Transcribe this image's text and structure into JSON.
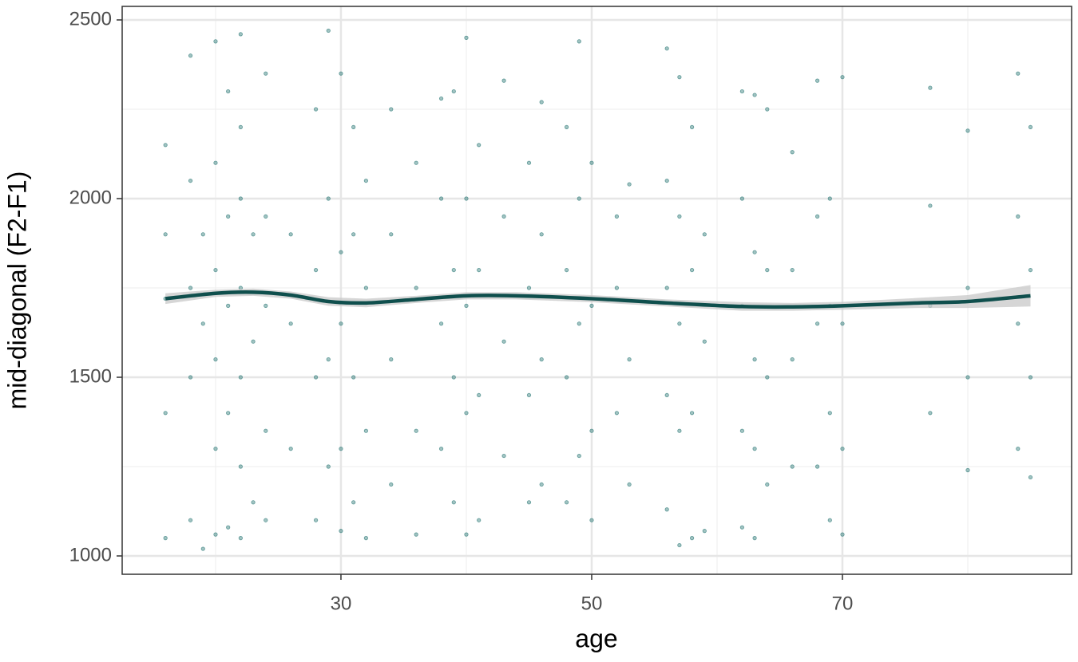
{
  "chart_data": {
    "type": "scatter",
    "x_label": "age",
    "y_label": "mid-diagonal (F2-F1)",
    "xlim": [
      12.55,
      88.28
    ],
    "ylim": [
      948.7,
      2537.9
    ],
    "xticks": [
      30,
      50,
      70
    ],
    "yticks": [
      1000,
      1500,
      2000,
      2500
    ],
    "xminorticks": [
      20,
      40,
      60,
      80
    ],
    "yminorticks": [
      1250,
      1750,
      2250
    ],
    "grid": true,
    "color": "#2e7b78",
    "x": [
      16,
      16,
      16,
      16,
      16,
      18,
      18,
      18,
      18,
      18,
      19,
      19,
      19,
      20,
      20,
      20,
      20,
      20,
      20,
      21,
      21,
      21,
      21,
      21,
      22,
      22,
      22,
      22,
      22,
      22,
      22,
      23,
      23,
      23,
      24,
      24,
      24,
      24,
      24,
      26,
      26,
      26,
      28,
      28,
      28,
      28,
      29,
      29,
      29,
      29,
      30,
      30,
      30,
      30,
      30,
      31,
      31,
      31,
      31,
      32,
      32,
      32,
      32,
      34,
      34,
      34,
      34,
      36,
      36,
      36,
      36,
      38,
      38,
      38,
      38,
      39,
      39,
      39,
      39,
      40,
      40,
      40,
      40,
      40,
      41,
      41,
      41,
      41,
      43,
      43,
      43,
      43,
      45,
      45,
      45,
      45,
      46,
      46,
      46,
      46,
      48,
      48,
      48,
      48,
      49,
      49,
      49,
      49,
      50,
      50,
      50,
      50,
      52,
      52,
      52,
      53,
      53,
      53,
      56,
      56,
      56,
      56,
      56,
      57,
      57,
      57,
      57,
      57,
      58,
      58,
      58,
      58,
      59,
      59,
      59,
      62,
      62,
      62,
      62,
      62,
      63,
      63,
      63,
      63,
      63,
      64,
      64,
      64,
      64,
      66,
      66,
      66,
      66,
      68,
      68,
      68,
      68,
      69,
      69,
      69,
      69,
      70,
      70,
      70,
      70,
      77,
      77,
      77,
      77,
      80,
      80,
      80,
      80,
      84,
      84,
      84,
      84,
      85,
      85,
      85,
      85
    ],
    "values": [
      1050,
      1400,
      1720,
      1900,
      2150,
      1100,
      1500,
      1750,
      2050,
      2400,
      1020,
      1650,
      1900,
      1060,
      1300,
      1550,
      1800,
      2100,
      2440,
      1080,
      1400,
      1700,
      1950,
      2300,
      1050,
      1250,
      1500,
      1750,
      2000,
      2200,
      2460,
      1150,
      1600,
      1900,
      1100,
      1350,
      1700,
      1950,
      2350,
      1300,
      1650,
      1900,
      1100,
      1500,
      1800,
      2250,
      1250,
      1550,
      2000,
      2470,
      1070,
      1300,
      1650,
      1850,
      2350,
      1150,
      1500,
      1900,
      2200,
      1050,
      1350,
      1750,
      2050,
      1200,
      1550,
      1900,
      2250,
      1060,
      1350,
      1750,
      2100,
      1300,
      1650,
      2000,
      2280,
      1150,
      1500,
      1800,
      2300,
      1060,
      1400,
      1700,
      2000,
      2450,
      1100,
      1450,
      1800,
      2150,
      1280,
      1600,
      1950,
      2330,
      1150,
      1450,
      1750,
      2100,
      1200,
      1550,
      1900,
      2270,
      1150,
      1500,
      1800,
      2200,
      1280,
      1650,
      2000,
      2440,
      1100,
      1350,
      1700,
      2100,
      1400,
      1750,
      1950,
      1200,
      1550,
      2040,
      1130,
      1450,
      1750,
      2050,
      2420,
      1030,
      1350,
      1650,
      1950,
      2340,
      1050,
      1400,
      1800,
      2200,
      1070,
      1600,
      1900,
      1080,
      1350,
      1700,
      2000,
      2300,
      1050,
      1300,
      1550,
      1850,
      2290,
      1200,
      1500,
      1800,
      2250,
      1250,
      1550,
      1800,
      2130,
      1250,
      1650,
      1950,
      2330,
      1100,
      1400,
      1700,
      2000,
      1060,
      1300,
      1650,
      2340,
      1400,
      1700,
      1980,
      2310,
      1240,
      1500,
      1750,
      2190,
      1300,
      1650,
      1950,
      2350,
      1220,
      1500,
      1800,
      2200
    ],
    "smooth": {
      "color": "#0f4f4d",
      "band_color": "#c8c8c8",
      "x": [
        16,
        20,
        23,
        26,
        29,
        32,
        36,
        40,
        44,
        50,
        56,
        62,
        66,
        70,
        76,
        80,
        85
      ],
      "y": [
        1720,
        1735,
        1738,
        1730,
        1712,
        1708,
        1718,
        1728,
        1728,
        1720,
        1708,
        1698,
        1697,
        1700,
        1708,
        1712,
        1728
      ],
      "ymin": [
        1705,
        1725,
        1728,
        1720,
        1700,
        1696,
        1708,
        1718,
        1718,
        1710,
        1698,
        1686,
        1686,
        1689,
        1694,
        1694,
        1698
      ],
      "ymax": [
        1735,
        1745,
        1748,
        1740,
        1724,
        1720,
        1728,
        1738,
        1738,
        1730,
        1718,
        1710,
        1708,
        1711,
        1722,
        1730,
        1758
      ]
    }
  }
}
